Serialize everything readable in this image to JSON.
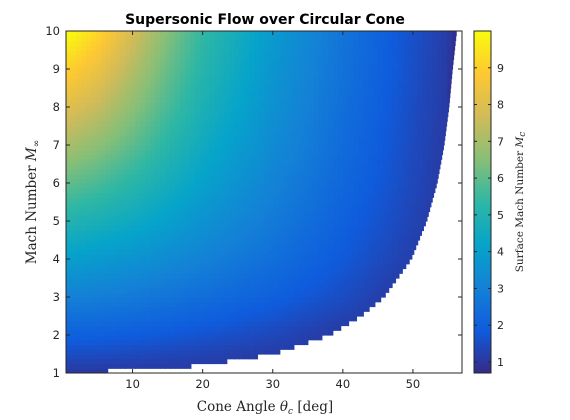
{
  "chart_data": {
    "type": "heatmap",
    "title": "Supersonic Flow over Circular Cone",
    "xlabel": {
      "text": "Cone Angle ",
      "symbol": "θ",
      "sub": "c",
      "unit": " [deg]"
    },
    "ylabel": {
      "text": "Mach Number ",
      "symbol": "M",
      "sub": "∞"
    },
    "colorbar_label": {
      "text": "Surface Mach Number ",
      "symbol": "M",
      "sub": "c"
    },
    "xlim": [
      0.5,
      57
    ],
    "ylim": [
      1,
      10
    ],
    "x_ticks": [
      10,
      20,
      30,
      40,
      50
    ],
    "y_ticks": [
      1,
      2,
      3,
      4,
      5,
      6,
      7,
      8,
      9,
      10
    ],
    "colorbar_lim": [
      0.7,
      10
    ],
    "colorbar_ticks": [
      1,
      2,
      3,
      4,
      5,
      6,
      7,
      8,
      9
    ],
    "colormap": "parula",
    "colormap_stops": [
      "#352a87",
      "#0f5cdd",
      "#1481d6",
      "#06a4ca",
      "#2eb7a4",
      "#87bf77",
      "#d1bb59",
      "#fec832",
      "#f9fb0e"
    ],
    "detachment_boundary": {
      "mach": [
        1.0,
        1.2,
        1.5,
        2.0,
        2.5,
        3.0,
        4.0,
        5.0,
        6.0,
        7.0,
        8.0,
        9.0,
        10.0
      ],
      "max_cone_angle_deg": [
        0.5,
        19.5,
        30.0,
        38.0,
        42.5,
        45.8,
        49.7,
        51.9,
        53.4,
        54.4,
        55.1,
        55.6,
        56.2
      ]
    },
    "surface_mach_values": {
      "x_cone_angle_deg": [
        1,
        5,
        10,
        15,
        20,
        30,
        40,
        50,
        55
      ],
      "rows": [
        {
          "mach": 1.5,
          "surface_mach": [
            1.5,
            1.47,
            1.42,
            1.36,
            1.28,
            1.1,
            null,
            null,
            null
          ]
        },
        {
          "mach": 2,
          "surface_mach": [
            2.0,
            1.96,
            1.88,
            1.78,
            1.66,
            1.38,
            1.02,
            null,
            null
          ]
        },
        {
          "mach": 3,
          "surface_mach": [
            3.0,
            2.92,
            2.78,
            2.6,
            2.4,
            1.98,
            1.5,
            0.9,
            null
          ]
        },
        {
          "mach": 4,
          "surface_mach": [
            4.0,
            3.85,
            3.62,
            3.35,
            3.05,
            2.45,
            1.8,
            1.15,
            null
          ]
        },
        {
          "mach": 5,
          "surface_mach": [
            5.0,
            4.78,
            4.45,
            4.05,
            3.6,
            2.8,
            2.02,
            1.3,
            0.95
          ]
        },
        {
          "mach": 6,
          "surface_mach": [
            6.0,
            5.7,
            5.2,
            4.65,
            4.1,
            3.1,
            2.2,
            1.4,
            1.0
          ]
        },
        {
          "mach": 7,
          "surface_mach": [
            7.0,
            6.6,
            5.95,
            5.2,
            4.5,
            3.35,
            2.35,
            1.45,
            1.05
          ]
        },
        {
          "mach": 8,
          "surface_mach": [
            8.0,
            7.5,
            6.6,
            5.7,
            4.85,
            3.55,
            2.45,
            1.5,
            1.08
          ]
        },
        {
          "mach": 9,
          "surface_mach": [
            9.0,
            8.35,
            7.2,
            6.1,
            5.15,
            3.7,
            2.55,
            1.55,
            1.1
          ]
        },
        {
          "mach": 10,
          "surface_mach": [
            10.0,
            9.2,
            7.8,
            6.5,
            5.4,
            3.85,
            2.62,
            1.58,
            1.12
          ]
        }
      ]
    }
  }
}
